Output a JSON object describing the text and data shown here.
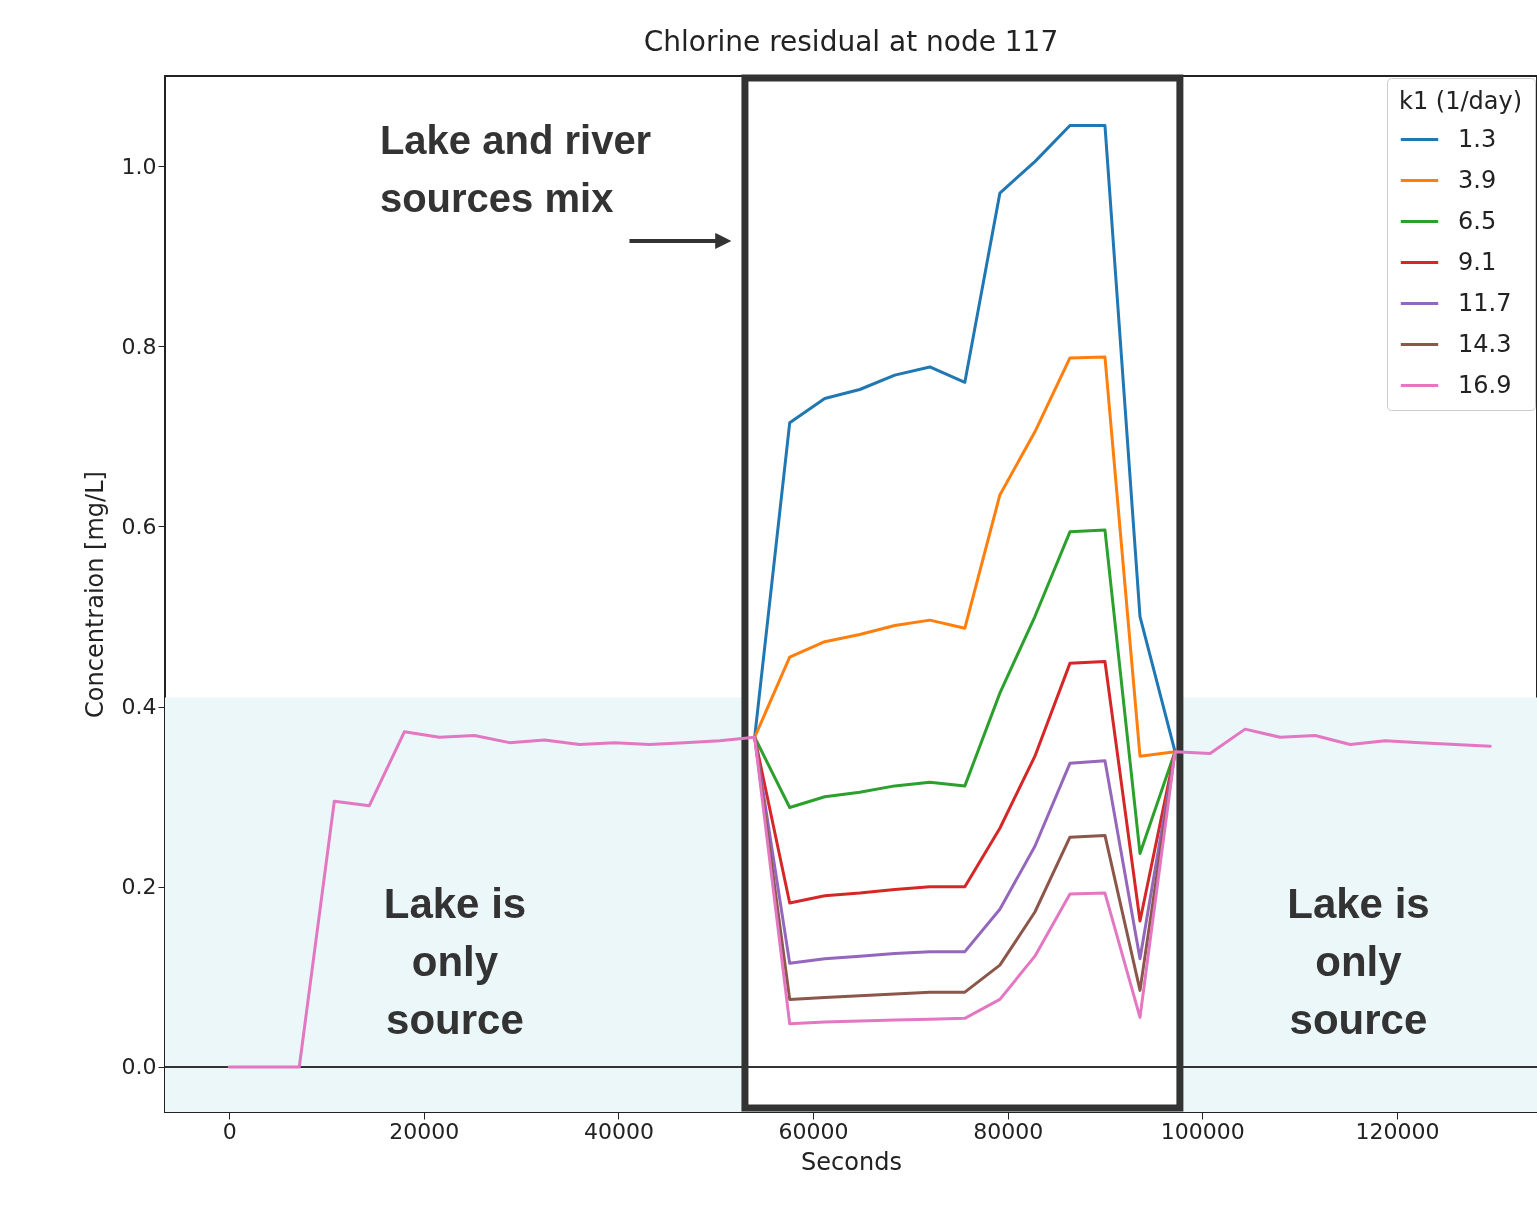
{
  "chart_data": {
    "type": "line",
    "title": "Chlorine residual at node 117",
    "xlabel": "Seconds",
    "ylabel": "Concentraion [mg/L]",
    "legend_title": "k1 (1/day)",
    "legend": "top right",
    "grid": false,
    "x": [
      0,
      3600,
      7200,
      10800,
      14400,
      18000,
      21600,
      25200,
      28800,
      32400,
      36000,
      39600,
      43200,
      46800,
      50400,
      54000,
      57600,
      61200,
      64800,
      68400,
      72000,
      75600,
      79200,
      82800,
      86400,
      90000,
      93600,
      97200,
      100800,
      104400,
      108000,
      111600,
      115200,
      118800,
      122400,
      126000,
      129600
    ],
    "xlim": [
      -6600,
      134400
    ],
    "xticks": [
      0,
      20000,
      40000,
      60000,
      80000,
      100000,
      120000
    ],
    "ylim": [
      -0.05,
      1.1
    ],
    "yticks": [
      {
        "value": 0,
        "label": "0.0"
      },
      0.2,
      0.4,
      0.6,
      0.8,
      {
        "value": 1,
        "label": "1.0"
      }
    ],
    "series": [
      {
        "name": "1.3",
        "color": "#1f77b4",
        "values": [
          null,
          null,
          null,
          null,
          null,
          null,
          null,
          null,
          null,
          null,
          null,
          null,
          null,
          null,
          null,
          0.366,
          0.715,
          0.742,
          0.752,
          0.768,
          0.777,
          0.76,
          0.97,
          1.005,
          1.045,
          1.045,
          0.5,
          0.35,
          null,
          null,
          null,
          null,
          null,
          null,
          null,
          null,
          null
        ]
      },
      {
        "name": "3.9",
        "color": "#ff7f0e",
        "values": [
          null,
          null,
          null,
          null,
          null,
          null,
          null,
          null,
          null,
          null,
          null,
          null,
          null,
          null,
          null,
          0.366,
          0.455,
          0.472,
          0.48,
          0.49,
          0.496,
          0.487,
          0.635,
          0.705,
          0.787,
          0.788,
          0.345,
          0.35,
          null,
          null,
          null,
          null,
          null,
          null,
          null,
          null,
          null
        ]
      },
      {
        "name": "6.5",
        "color": "#2ca02c",
        "values": [
          null,
          null,
          null,
          null,
          null,
          null,
          null,
          null,
          null,
          null,
          null,
          null,
          null,
          null,
          null,
          0.366,
          0.288,
          0.3,
          0.305,
          0.312,
          0.316,
          0.312,
          0.415,
          0.5,
          0.594,
          0.596,
          0.237,
          0.35,
          null,
          null,
          null,
          null,
          null,
          null,
          null,
          null,
          null
        ]
      },
      {
        "name": "9.1",
        "color": "#d62728",
        "values": [
          null,
          null,
          null,
          null,
          null,
          null,
          null,
          null,
          null,
          null,
          null,
          null,
          null,
          null,
          null,
          0.366,
          0.182,
          0.19,
          0.193,
          0.197,
          0.2,
          0.2,
          0.265,
          0.345,
          0.448,
          0.45,
          0.162,
          0.35,
          null,
          null,
          null,
          null,
          null,
          null,
          null,
          null,
          null
        ]
      },
      {
        "name": "11.7",
        "color": "#9467bd",
        "values": [
          null,
          null,
          null,
          null,
          null,
          null,
          null,
          null,
          null,
          null,
          null,
          null,
          null,
          null,
          null,
          0.366,
          0.115,
          0.12,
          0.123,
          0.126,
          0.128,
          0.128,
          0.175,
          0.245,
          0.337,
          0.34,
          0.12,
          0.35,
          null,
          null,
          null,
          null,
          null,
          null,
          null,
          null,
          null
        ]
      },
      {
        "name": "14.3",
        "color": "#8c564b",
        "values": [
          null,
          null,
          null,
          null,
          null,
          null,
          null,
          null,
          null,
          null,
          null,
          null,
          null,
          null,
          null,
          0.366,
          0.075,
          0.077,
          0.079,
          0.081,
          0.083,
          0.083,
          0.113,
          0.172,
          0.255,
          0.257,
          0.085,
          0.35,
          null,
          null,
          null,
          null,
          null,
          null,
          null,
          null,
          null
        ]
      },
      {
        "name": "16.9",
        "color": "#e377c2",
        "values": [
          0,
          0,
          0,
          0.295,
          0.29,
          0.372,
          0.366,
          0.368,
          0.36,
          0.363,
          0.358,
          0.36,
          0.358,
          0.36,
          0.362,
          0.366,
          0.048,
          0.05,
          0.051,
          0.052,
          0.053,
          0.054,
          0.075,
          0.123,
          0.192,
          0.193,
          0.055,
          0.35,
          0.348,
          0.375,
          0.366,
          0.368,
          0.358,
          0.362,
          0.36,
          0.358,
          0.356
        ]
      }
    ],
    "ref_lines": [
      {
        "axis": "y",
        "value": 0,
        "color": "#333333"
      }
    ],
    "bands": [
      {
        "axis": "y",
        "from": -0.05,
        "to": 0.41,
        "color": "#ebf7f9"
      },
      {
        "axis": "x",
        "from": 53000,
        "to": 97700,
        "color": "#333333"
      }
    ],
    "annotations": [
      "Lake and river sources mix",
      "Lake is only source",
      "Lake is only source"
    ]
  }
}
